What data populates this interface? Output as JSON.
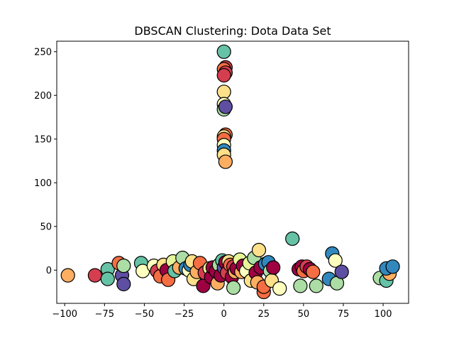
{
  "chart_data": {
    "type": "scatter",
    "title": "DBSCAN Clustering: Dota Data Set",
    "xlabel": "",
    "ylabel": "",
    "xlim": [
      -105,
      116
    ],
    "ylim": [
      -38,
      262
    ],
    "grid": false,
    "legend": "none",
    "x_ticks": [
      -100,
      -75,
      -50,
      -25,
      0,
      25,
      50,
      75,
      100
    ],
    "y_ticks": [
      0,
      50,
      100,
      150,
      200,
      250
    ],
    "palette": {
      "dark_red": "#9e0142",
      "red": "#d53e4f",
      "orange_red": "#f46d43",
      "orange": "#fdae61",
      "pale_yellow": "#fee08b",
      "cream": "#ffffbf",
      "yellow_green": "#e6f598",
      "light_green": "#abdda4",
      "green": "#66c2a5",
      "blue": "#3288bd",
      "purple": "#5e4fa2"
    },
    "points": [
      {
        "x": 0,
        "y": 250,
        "c": "green"
      },
      {
        "x": 1,
        "y": 232,
        "c": "red"
      },
      {
        "x": 0,
        "y": 230,
        "c": "orange_red"
      },
      {
        "x": 1,
        "y": 226,
        "c": "red"
      },
      {
        "x": 0,
        "y": 223,
        "c": "red"
      },
      {
        "x": 0,
        "y": 204,
        "c": "pale_yellow"
      },
      {
        "x": 0,
        "y": 190,
        "c": "cream"
      },
      {
        "x": 0,
        "y": 184,
        "c": "light_green"
      },
      {
        "x": 1,
        "y": 187,
        "c": "purple"
      },
      {
        "x": 1,
        "y": 155,
        "c": "orange_red"
      },
      {
        "x": 0,
        "y": 153,
        "c": "pale_yellow"
      },
      {
        "x": 0,
        "y": 150,
        "c": "orange_red"
      },
      {
        "x": 0,
        "y": 143,
        "c": "cream"
      },
      {
        "x": 0,
        "y": 137,
        "c": "blue"
      },
      {
        "x": 0,
        "y": 132,
        "c": "pale_yellow"
      },
      {
        "x": 1,
        "y": 124,
        "c": "orange"
      },
      {
        "x": 43,
        "y": 36,
        "c": "green"
      },
      {
        "x": -98,
        "y": -6,
        "c": "orange"
      },
      {
        "x": -81,
        "y": -6,
        "c": "red"
      },
      {
        "x": -73,
        "y": 1,
        "c": "green"
      },
      {
        "x": -73,
        "y": -10,
        "c": "green"
      },
      {
        "x": -66,
        "y": 8,
        "c": "orange_red"
      },
      {
        "x": -64,
        "y": -6,
        "c": "purple"
      },
      {
        "x": -63,
        "y": -16,
        "c": "purple"
      },
      {
        "x": -63,
        "y": 5,
        "c": "light_green"
      },
      {
        "x": -52,
        "y": 8,
        "c": "green"
      },
      {
        "x": -51,
        "y": -1,
        "c": "cream"
      },
      {
        "x": -44,
        "y": 5,
        "c": "cream"
      },
      {
        "x": -42,
        "y": -1,
        "c": "red"
      },
      {
        "x": -40,
        "y": -7,
        "c": "orange_red"
      },
      {
        "x": -38,
        "y": 6,
        "c": "pale_yellow"
      },
      {
        "x": -36,
        "y": 0,
        "c": "dark_red"
      },
      {
        "x": -35,
        "y": -11,
        "c": "orange_red"
      },
      {
        "x": -32,
        "y": 10,
        "c": "yellow_green"
      },
      {
        "x": -31,
        "y": -1,
        "c": "green"
      },
      {
        "x": -28,
        "y": 3,
        "c": "orange"
      },
      {
        "x": -26,
        "y": 14,
        "c": "light_green"
      },
      {
        "x": -24,
        "y": 2,
        "c": "blue"
      },
      {
        "x": -22,
        "y": 0,
        "c": "cream"
      },
      {
        "x": -21,
        "y": 6,
        "c": "blue"
      },
      {
        "x": -20,
        "y": 10,
        "c": "pale_yellow"
      },
      {
        "x": -19,
        "y": -10,
        "c": "pale_yellow"
      },
      {
        "x": -17,
        "y": -2,
        "c": "orange"
      },
      {
        "x": -15,
        "y": 8,
        "c": "orange_red"
      },
      {
        "x": -13,
        "y": -18,
        "c": "dark_red"
      },
      {
        "x": -12,
        "y": -3,
        "c": "red"
      },
      {
        "x": -9,
        "y": 2,
        "c": "yellow_green"
      },
      {
        "x": -8,
        "y": -8,
        "c": "dark_red"
      },
      {
        "x": -7,
        "y": 3,
        "c": "dark_red"
      },
      {
        "x": -5,
        "y": -1,
        "c": "dark_red"
      },
      {
        "x": -4,
        "y": -15,
        "c": "orange"
      },
      {
        "x": -3,
        "y": 6,
        "c": "light_green"
      },
      {
        "x": -2,
        "y": -6,
        "c": "dark_red"
      },
      {
        "x": -1,
        "y": 11,
        "c": "green"
      },
      {
        "x": 0,
        "y": 3,
        "c": "purple"
      },
      {
        "x": 1,
        "y": 9,
        "c": "dark_red"
      },
      {
        "x": 2,
        "y": -3,
        "c": "red"
      },
      {
        "x": 3,
        "y": 10,
        "c": "pale_yellow"
      },
      {
        "x": 4,
        "y": 6,
        "c": "orange_red"
      },
      {
        "x": 5,
        "y": -8,
        "c": "dark_red"
      },
      {
        "x": 6,
        "y": -20,
        "c": "light_green"
      },
      {
        "x": 6,
        "y": 4,
        "c": "red"
      },
      {
        "x": 7,
        "y": -2,
        "c": "orange"
      },
      {
        "x": 8,
        "y": 2,
        "c": "dark_red"
      },
      {
        "x": 10,
        "y": 12,
        "c": "yellow_green"
      },
      {
        "x": 11,
        "y": -2,
        "c": "orange"
      },
      {
        "x": 12,
        "y": 5,
        "c": "dark_red"
      },
      {
        "x": 14,
        "y": -1,
        "c": "cream"
      },
      {
        "x": 16,
        "y": 8,
        "c": "yellow_green"
      },
      {
        "x": 17,
        "y": -12,
        "c": "pale_yellow"
      },
      {
        "x": 19,
        "y": 14,
        "c": "light_green"
      },
      {
        "x": 20,
        "y": -3,
        "c": "dark_red"
      },
      {
        "x": 21,
        "y": -14,
        "c": "orange"
      },
      {
        "x": 22,
        "y": 23,
        "c": "pale_yellow"
      },
      {
        "x": 23,
        "y": 3,
        "c": "dark_red"
      },
      {
        "x": 25,
        "y": -25,
        "c": "orange_red"
      },
      {
        "x": 25,
        "y": -19,
        "c": "orange_red"
      },
      {
        "x": 26,
        "y": 7,
        "c": "blue"
      },
      {
        "x": 28,
        "y": 9,
        "c": "blue"
      },
      {
        "x": 29,
        "y": -1,
        "c": "light_green"
      },
      {
        "x": 30,
        "y": -12,
        "c": "pale_yellow"
      },
      {
        "x": 31,
        "y": 3,
        "c": "dark_red"
      },
      {
        "x": 35,
        "y": -21,
        "c": "cream"
      },
      {
        "x": 47,
        "y": 1,
        "c": "dark_red"
      },
      {
        "x": 48,
        "y": -18,
        "c": "light_green"
      },
      {
        "x": 49,
        "y": 4,
        "c": "dark_red"
      },
      {
        "x": 50,
        "y": -1,
        "c": "orange_red"
      },
      {
        "x": 52,
        "y": 4,
        "c": "red"
      },
      {
        "x": 54,
        "y": 1,
        "c": "dark_red"
      },
      {
        "x": 56,
        "y": -2,
        "c": "orange_red"
      },
      {
        "x": 58,
        "y": -18,
        "c": "light_green"
      },
      {
        "x": 66,
        "y": -10,
        "c": "blue"
      },
      {
        "x": 68,
        "y": 19,
        "c": "blue"
      },
      {
        "x": 70,
        "y": 11,
        "c": "cream"
      },
      {
        "x": 71,
        "y": -15,
        "c": "light_green"
      },
      {
        "x": 74,
        "y": -2,
        "c": "purple"
      },
      {
        "x": 98,
        "y": -9,
        "c": "light_green"
      },
      {
        "x": 102,
        "y": -12,
        "c": "green"
      },
      {
        "x": 104,
        "y": -4,
        "c": "orange"
      },
      {
        "x": 102,
        "y": 2,
        "c": "blue"
      },
      {
        "x": 106,
        "y": 4,
        "c": "blue"
      }
    ]
  }
}
